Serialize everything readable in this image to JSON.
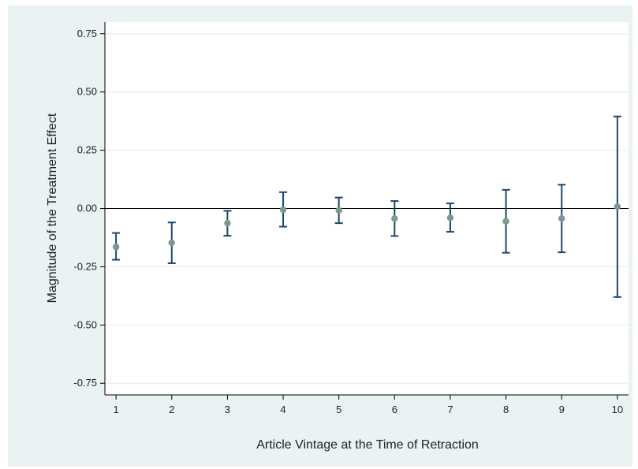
{
  "chart_data": {
    "type": "scatter",
    "title": "",
    "xlabel": "Article Vintage at the Time of Retraction",
    "ylabel": "Magnitude of the Treatment Effect",
    "x_ticks": [
      "1",
      "2",
      "3",
      "4",
      "5",
      "6",
      "7",
      "8",
      "9",
      "10"
    ],
    "y_ticks": [
      {
        "value": 0.75,
        "label": "0.75"
      },
      {
        "value": 0.5,
        "label": "0.50"
      },
      {
        "value": 0.25,
        "label": "0.25"
      },
      {
        "value": 0.0,
        "label": "0.00"
      },
      {
        "value": -0.25,
        "label": "-0.25"
      },
      {
        "value": -0.5,
        "label": "-0.50"
      },
      {
        "value": -0.75,
        "label": "-0.75"
      }
    ],
    "xlim": [
      0.8,
      10.2
    ],
    "ylim": [
      -0.8,
      0.8
    ],
    "grid": true,
    "reference_line_y": 0,
    "points": [
      {
        "x": 1,
        "y": -0.165,
        "lo": -0.22,
        "hi": -0.105
      },
      {
        "x": 2,
        "y": -0.147,
        "lo": -0.235,
        "hi": -0.06
      },
      {
        "x": 3,
        "y": -0.063,
        "lo": -0.117,
        "hi": -0.01
      },
      {
        "x": 4,
        "y": -0.005,
        "lo": -0.078,
        "hi": 0.07
      },
      {
        "x": 5,
        "y": -0.008,
        "lo": -0.063,
        "hi": 0.047
      },
      {
        "x": 6,
        "y": -0.043,
        "lo": -0.118,
        "hi": 0.032
      },
      {
        "x": 7,
        "y": -0.04,
        "lo": -0.1,
        "hi": 0.022
      },
      {
        "x": 8,
        "y": -0.055,
        "lo": -0.19,
        "hi": 0.08
      },
      {
        "x": 9,
        "y": -0.043,
        "lo": -0.188,
        "hi": 0.102
      },
      {
        "x": 10,
        "y": 0.008,
        "lo": -0.38,
        "hi": 0.395
      }
    ],
    "colors": {
      "outer_background": "#eaf2f3",
      "plot_background": "#ffffff",
      "grid": "#eaf2f3",
      "error_bar": "#1a476f",
      "marker": "#7b9a8e",
      "axis": "#000000"
    }
  }
}
